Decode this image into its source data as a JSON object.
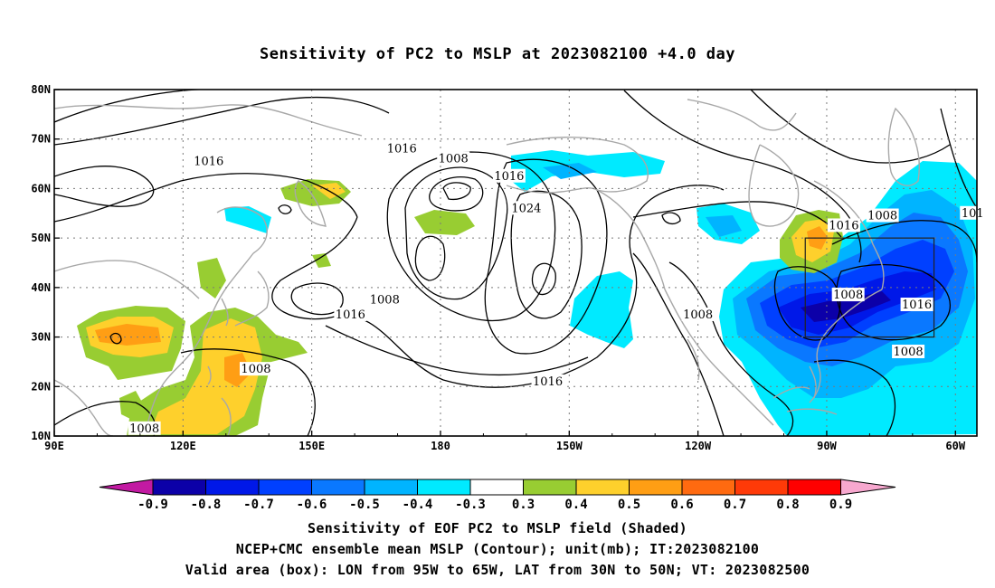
{
  "title": "Sensitivity of PC2 to MSLP at 2023082100 +4.0 day",
  "captions": {
    "line1": "Sensitivity of EOF PC2 to MSLP field (Shaded)",
    "line2": "NCEP+CMC ensemble mean MSLP (Contour); unit(mb); IT:2023082100",
    "line3": "Valid area (box): LON from 95W to 65W, LAT from 30N to 50N; VT: 2023082500"
  },
  "map": {
    "lon_range_east": [
      90,
      305
    ],
    "lat_range": [
      10,
      80
    ],
    "lon_ticks": [
      {
        "lon": 90,
        "label": "90E"
      },
      {
        "lon": 120,
        "label": "120E"
      },
      {
        "lon": 150,
        "label": "150E"
      },
      {
        "lon": 180,
        "label": "180"
      },
      {
        "lon": 210,
        "label": "150W"
      },
      {
        "lon": 240,
        "label": "120W"
      },
      {
        "lon": 270,
        "label": "90W"
      },
      {
        "lon": 300,
        "label": "60W"
      }
    ],
    "lat_ticks": [
      {
        "lat": 10,
        "label": "10N"
      },
      {
        "lat": 20,
        "label": "20N"
      },
      {
        "lat": 30,
        "label": "30N"
      },
      {
        "lat": 40,
        "label": "40N"
      },
      {
        "lat": 50,
        "label": "50N"
      },
      {
        "lat": 60,
        "label": "60N"
      },
      {
        "lat": 70,
        "label": "70N"
      },
      {
        "lat": 80,
        "label": "80N"
      }
    ],
    "valid_box": {
      "lon_west": 265,
      "lon_east": 295,
      "lat_south": 30,
      "lat_north": 50
    },
    "contour_labels": [
      {
        "text": "1016",
        "lon": 126,
        "lat": 65.5
      },
      {
        "text": "1016",
        "lon": 171,
        "lat": 68
      },
      {
        "text": "1008",
        "lon": 183,
        "lat": 66
      },
      {
        "text": "1016",
        "lon": 196,
        "lat": 62.5
      },
      {
        "text": "1024",
        "lon": 200,
        "lat": 56
      },
      {
        "text": "1016",
        "lon": 274,
        "lat": 52.5
      },
      {
        "text": "1008",
        "lon": 283,
        "lat": 54.5
      },
      {
        "text": "101",
        "lon": 304,
        "lat": 55
      },
      {
        "text": "1008",
        "lon": 275,
        "lat": 38.5
      },
      {
        "text": "1016",
        "lon": 291,
        "lat": 36.5
      },
      {
        "text": "1008",
        "lon": 289,
        "lat": 27
      },
      {
        "text": "1008",
        "lon": 240,
        "lat": 34.5
      },
      {
        "text": "1008",
        "lon": 167,
        "lat": 37.5
      },
      {
        "text": "1016",
        "lon": 159,
        "lat": 34.5
      },
      {
        "text": "1008",
        "lon": 137,
        "lat": 23.5
      },
      {
        "text": "1016",
        "lon": 205,
        "lat": 21
      },
      {
        "text": "1008",
        "lon": 111,
        "lat": 11.5
      }
    ]
  },
  "colorbar": {
    "colors": [
      "#0c00a8",
      "#0018e8",
      "#0040ff",
      "#0a78ff",
      "#00b4ff",
      "#00eaff",
      "#ffffff",
      "#98cd32",
      "#fed02c",
      "#ff9e14",
      "#ff6a10",
      "#ff3a08",
      "#ff0000"
    ],
    "left_arrow_color": "#c21aa2",
    "right_arrow_color": "#f7a8cf",
    "labels": [
      "-0.9",
      "-0.8",
      "-0.7",
      "-0.6",
      "-0.5",
      "-0.4",
      "-0.3",
      "0.3",
      "0.4",
      "0.5",
      "0.6",
      "0.7",
      "0.8",
      "0.9"
    ]
  }
}
